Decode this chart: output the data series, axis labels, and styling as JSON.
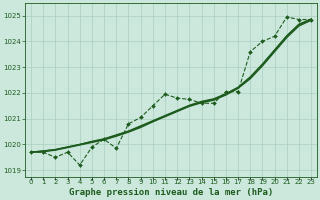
{
  "title": "Graphe pression niveau de la mer (hPa)",
  "x_values": [
    0,
    1,
    2,
    3,
    4,
    5,
    6,
    7,
    8,
    9,
    10,
    11,
    12,
    13,
    14,
    15,
    16,
    17,
    18,
    19,
    20,
    21,
    22,
    23
  ],
  "x_labels": [
    "0",
    "1",
    "2",
    "3",
    "4",
    "5",
    "6",
    "7",
    "8",
    "9",
    "10",
    "11",
    "12",
    "13",
    "14",
    "15",
    "16",
    "17",
    "18",
    "19",
    "20",
    "21",
    "22",
    "23"
  ],
  "line_dotted": [
    1019.7,
    1019.7,
    1019.5,
    1019.7,
    1019.2,
    1019.9,
    1020.2,
    1019.85,
    1020.8,
    1021.05,
    1021.5,
    1021.95,
    1021.8,
    1021.75,
    1021.6,
    1021.6,
    1022.05,
    1022.05,
    1023.6,
    1024.0,
    1024.2,
    1024.95,
    1024.85,
    1024.85
  ],
  "line_smooth1": [
    1019.7,
    1019.75,
    1019.8,
    1019.9,
    1020.0,
    1020.1,
    1020.2,
    1020.35,
    1020.5,
    1020.7,
    1020.9,
    1021.1,
    1021.3,
    1021.5,
    1021.65,
    1021.75,
    1021.95,
    1022.2,
    1022.6,
    1023.1,
    1023.65,
    1024.2,
    1024.65,
    1024.85
  ],
  "line_smooth2": [
    1019.7,
    1019.72,
    1019.78,
    1019.88,
    1019.98,
    1020.08,
    1020.18,
    1020.32,
    1020.48,
    1020.66,
    1020.88,
    1021.08,
    1021.28,
    1021.48,
    1021.62,
    1021.72,
    1021.92,
    1022.18,
    1022.55,
    1023.05,
    1023.6,
    1024.15,
    1024.6,
    1024.82
  ],
  "line_smooth3": [
    1019.7,
    1019.74,
    1019.8,
    1019.9,
    1020.0,
    1020.12,
    1020.22,
    1020.37,
    1020.52,
    1020.72,
    1020.92,
    1021.12,
    1021.32,
    1021.52,
    1021.67,
    1021.77,
    1021.97,
    1022.22,
    1022.62,
    1023.12,
    1023.67,
    1024.22,
    1024.67,
    1024.87
  ],
  "ylim": [
    1018.75,
    1025.5
  ],
  "yticks": [
    1019,
    1020,
    1021,
    1022,
    1023,
    1024,
    1025
  ],
  "line_color": "#1e5c1e",
  "bg_color": "#cce8dd",
  "grid_color": "#aacfbf",
  "title_color": "#1e5c1e",
  "title_fontsize": 6.5,
  "tick_fontsize": 5.0,
  "marker_size": 2.0,
  "line_width": 0.8,
  "smooth_lw": 1.0
}
